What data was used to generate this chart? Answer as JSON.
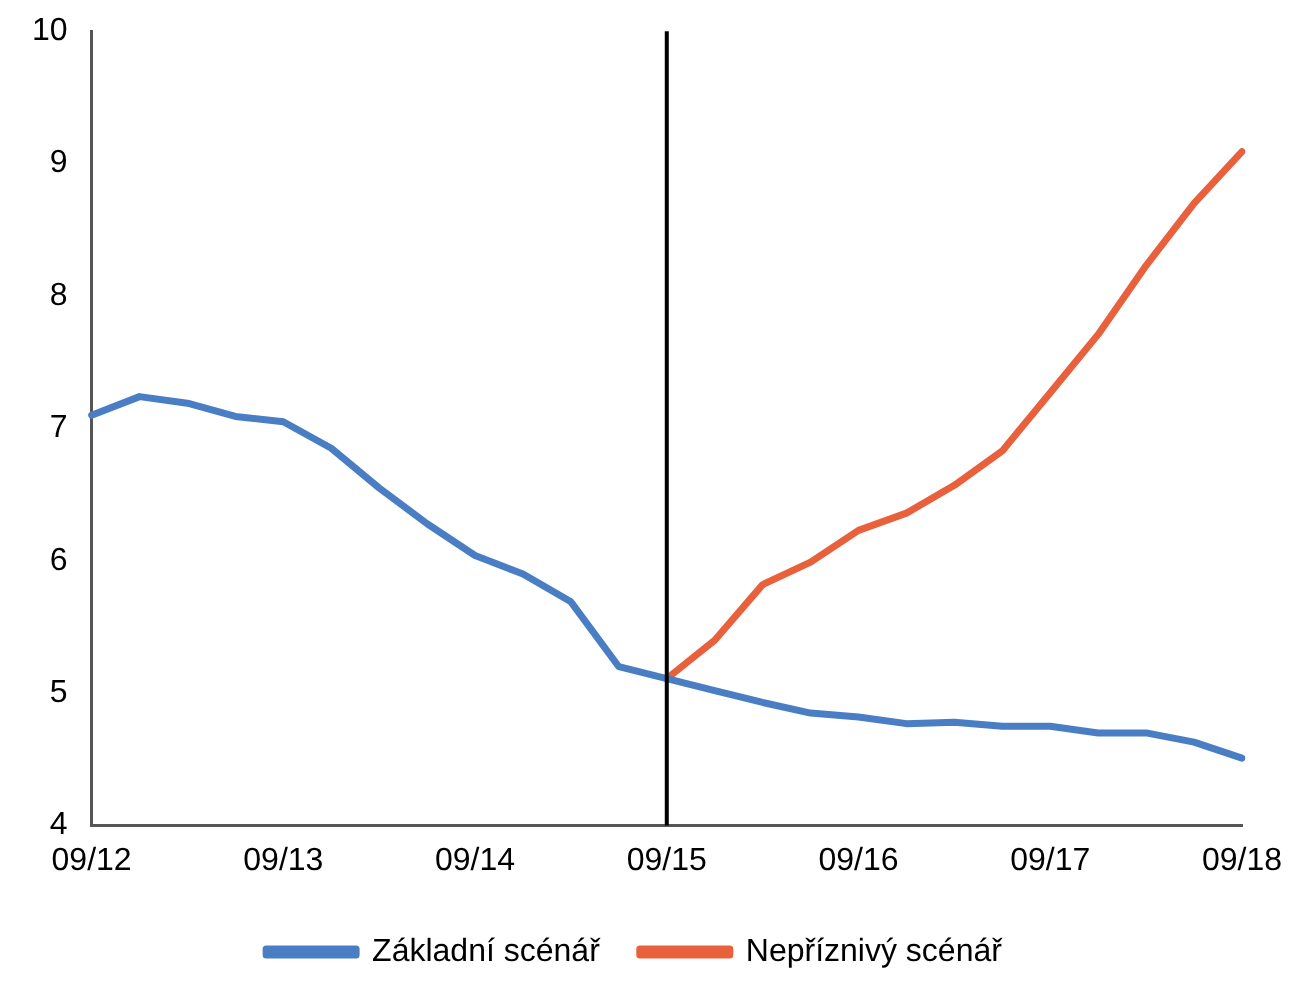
{
  "chart_data": {
    "type": "line",
    "categories": [
      "09/12",
      null,
      null,
      null,
      "09/13",
      null,
      null,
      null,
      "09/14",
      null,
      null,
      null,
      "09/15",
      null,
      null,
      null,
      "09/16",
      null,
      null,
      null,
      "09/17",
      null,
      null,
      null,
      "09/18"
    ],
    "series": [
      {
        "name": "Základní scénář",
        "color": "#4a7ec4",
        "values": [
          7.1,
          7.24,
          7.19,
          7.09,
          7.05,
          6.85,
          6.55,
          6.28,
          6.04,
          5.9,
          5.69,
          5.2,
          5.11,
          5.02,
          4.93,
          4.85,
          4.82,
          4.77,
          4.78,
          4.75,
          4.75,
          4.7,
          4.7,
          4.63,
          4.51
        ]
      },
      {
        "name": "Nepříznivý scénář",
        "color": "#e8603c",
        "values": [
          null,
          null,
          null,
          null,
          null,
          null,
          null,
          null,
          null,
          null,
          null,
          null,
          5.11,
          5.4,
          5.82,
          5.99,
          6.23,
          6.36,
          6.57,
          6.83,
          7.27,
          7.71,
          8.23,
          8.7,
          9.09
        ]
      }
    ],
    "ylim": [
      4,
      10
    ],
    "yticks": [
      4,
      5,
      6,
      7,
      8,
      9,
      10
    ],
    "ref_lines": [
      {
        "axis": "x",
        "value": "09/15",
        "color": "#000000"
      }
    ],
    "grid": false,
    "legend": "bottom",
    "marker": "none",
    "line_style": "solid"
  }
}
